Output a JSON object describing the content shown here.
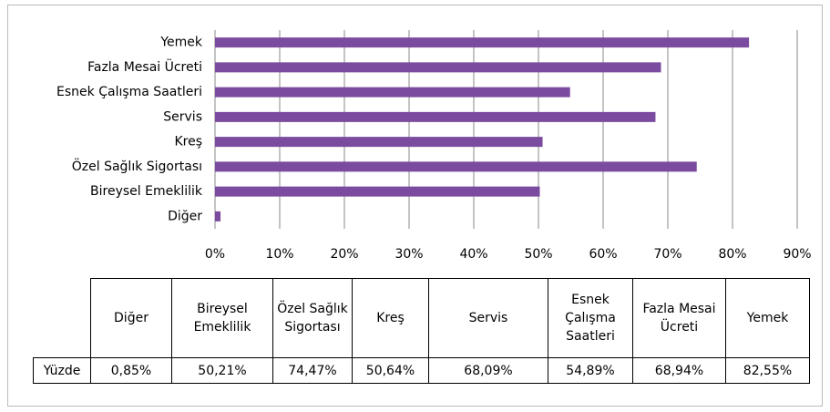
{
  "chart_data": {
    "type": "bar",
    "orientation": "horizontal",
    "categories": [
      "Diğer",
      "Bireysel Emeklilik",
      "Özel Sağlık Sigortası",
      "Kreş",
      "Servis",
      "Esnek Çalışma Saatleri",
      "Fazla Mesai Ücreti",
      "Yemek"
    ],
    "values": [
      0.85,
      50.21,
      74.47,
      50.64,
      68.09,
      54.89,
      68.94,
      82.55
    ],
    "value_labels": [
      "0,85%",
      "50,21%",
      "74,47%",
      "50,64%",
      "68,09%",
      "54,89%",
      "68,94%",
      "82,55%"
    ],
    "series_name": "Yüzde",
    "color": "#7a4b9f",
    "xlim": [
      0,
      90
    ],
    "xticks": [
      {
        "value": 0,
        "label": "0%"
      },
      {
        "value": 10,
        "label": "10%"
      },
      {
        "value": 20,
        "label": "20%"
      },
      {
        "value": 30,
        "label": "30%"
      },
      {
        "value": 40,
        "label": "40%"
      },
      {
        "value": 50,
        "label": "50%"
      },
      {
        "value": 60,
        "label": "60%"
      },
      {
        "value": 70,
        "label": "70%"
      },
      {
        "value": 80,
        "label": "80%"
      },
      {
        "value": 90,
        "label": "90%"
      }
    ],
    "grid": true,
    "data_table": true
  }
}
